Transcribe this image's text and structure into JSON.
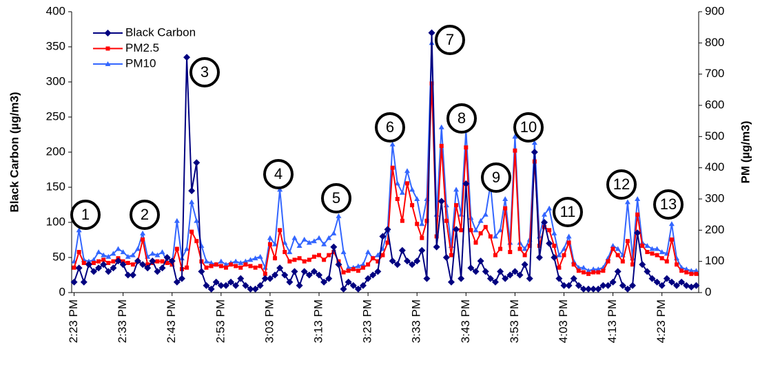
{
  "chart_data": {
    "type": "line",
    "categories": [
      "2:23 PM",
      null,
      null,
      null,
      null,
      null,
      null,
      null,
      null,
      null,
      "2:33 PM",
      null,
      null,
      null,
      null,
      null,
      null,
      null,
      null,
      null,
      "2:43 PM",
      null,
      null,
      null,
      null,
      null,
      null,
      null,
      null,
      null,
      "2:53 PM",
      null,
      null,
      null,
      null,
      null,
      null,
      null,
      null,
      null,
      "3:03 PM",
      null,
      null,
      null,
      null,
      null,
      null,
      null,
      null,
      null,
      "3:13 PM",
      null,
      null,
      null,
      null,
      null,
      null,
      null,
      null,
      null,
      "3:23 PM",
      null,
      null,
      null,
      null,
      null,
      null,
      null,
      null,
      null,
      "3:33 PM",
      null,
      null,
      null,
      null,
      null,
      null,
      null,
      null,
      null,
      "3:43 PM",
      null,
      null,
      null,
      null,
      null,
      null,
      null,
      null,
      null,
      "3:53 PM",
      null,
      null,
      null,
      null,
      null,
      null,
      null,
      null,
      null,
      "4:03 PM",
      null,
      null,
      null,
      null,
      null,
      null,
      null,
      null,
      null,
      "4:13 PM",
      null,
      null,
      null,
      null,
      null,
      null,
      null,
      null,
      null,
      "4:23 PM",
      null,
      null,
      null,
      null,
      null,
      null,
      null
    ],
    "series": [
      {
        "name": "Black Carbon",
        "color": "#000080",
        "marker": "diamond",
        "axis": "y",
        "values": [
          15,
          35,
          15,
          40,
          30,
          35,
          40,
          30,
          35,
          45,
          40,
          25,
          25,
          45,
          40,
          35,
          45,
          30,
          35,
          50,
          45,
          15,
          20,
          335,
          145,
          185,
          30,
          10,
          5,
          15,
          10,
          10,
          15,
          10,
          20,
          10,
          5,
          5,
          10,
          20,
          20,
          25,
          35,
          25,
          15,
          30,
          10,
          30,
          25,
          30,
          25,
          15,
          20,
          65,
          40,
          5,
          15,
          10,
          5,
          10,
          20,
          25,
          30,
          80,
          90,
          45,
          40,
          60,
          45,
          40,
          45,
          60,
          20,
          370,
          65,
          130,
          50,
          15,
          90,
          20,
          155,
          35,
          30,
          45,
          30,
          20,
          15,
          30,
          20,
          25,
          30,
          25,
          40,
          20,
          200,
          50,
          100,
          70,
          50,
          20,
          10,
          10,
          20,
          10,
          5,
          5,
          5,
          5,
          10,
          10,
          15,
          30,
          10,
          5,
          10,
          85,
          40,
          30,
          20,
          15,
          10,
          20,
          15,
          10,
          15,
          10,
          8,
          10
        ]
      },
      {
        "name": "PM2.5",
        "color": "#ff0000",
        "marker": "square",
        "axis": "y2",
        "values": [
          80,
          130,
          95,
          90,
          95,
          100,
          105,
          95,
          100,
          110,
          100,
          95,
          90,
          100,
          170,
          90,
          95,
          100,
          100,
          95,
          90,
          140,
          75,
          80,
          195,
          165,
          100,
          80,
          85,
          90,
          85,
          80,
          90,
          85,
          80,
          90,
          85,
          80,
          85,
          60,
          155,
          110,
          200,
          130,
          100,
          105,
          110,
          100,
          105,
          115,
          120,
          105,
          120,
          130,
          100,
          65,
          70,
          75,
          70,
          80,
          90,
          110,
          100,
          120,
          160,
          400,
          300,
          230,
          350,
          280,
          220,
          175,
          230,
          670,
          180,
          470,
          230,
          120,
          280,
          200,
          465,
          200,
          160,
          190,
          210,
          180,
          120,
          140,
          270,
          130,
          455,
          140,
          120,
          150,
          420,
          150,
          210,
          200,
          150,
          80,
          120,
          160,
          90,
          70,
          65,
          60,
          65,
          65,
          70,
          100,
          140,
          120,
          100,
          165,
          90,
          250,
          150,
          130,
          125,
          120,
          110,
          100,
          170,
          90,
          70,
          65,
          60,
          60
        ]
      },
      {
        "name": "PM10",
        "color": "#3366ff",
        "marker": "triangle",
        "axis": "y2",
        "values": [
          100,
          200,
          105,
          100,
          105,
          130,
          120,
          115,
          125,
          140,
          130,
          115,
          120,
          140,
          190,
          115,
          125,
          120,
          130,
          100,
          90,
          230,
          110,
          140,
          290,
          230,
          150,
          100,
          95,
          90,
          100,
          90,
          95,
          100,
          95,
          100,
          105,
          110,
          115,
          80,
          175,
          155,
          330,
          160,
          130,
          175,
          150,
          170,
          160,
          165,
          175,
          155,
          175,
          190,
          245,
          130,
          80,
          80,
          85,
          90,
          130,
          110,
          120,
          140,
          200,
          475,
          350,
          320,
          390,
          330,
          300,
          220,
          300,
          800,
          250,
          530,
          280,
          150,
          330,
          250,
          520,
          240,
          200,
          230,
          250,
          345,
          180,
          200,
          300,
          160,
          500,
          160,
          140,
          170,
          480,
          180,
          250,
          270,
          190,
          120,
          140,
          180,
          100,
          80,
          80,
          70,
          75,
          75,
          80,
          110,
          150,
          140,
          120,
          290,
          110,
          300,
          160,
          150,
          140,
          140,
          130,
          125,
          220,
          110,
          80,
          75,
          70,
          70
        ]
      }
    ],
    "y_label": "Black Carbon (µg/m3)",
    "y2_label": "PM (µg/m3)",
    "ylim": [
      0,
      400
    ],
    "yticks": [
      0,
      50,
      100,
      150,
      200,
      250,
      300,
      350,
      400
    ],
    "y2lim": [
      0,
      900
    ],
    "y2ticks": [
      0,
      100,
      200,
      300,
      400,
      500,
      600,
      700,
      800,
      900
    ],
    "legend": "upper left",
    "annotations": [
      "1",
      "2",
      "3",
      "4",
      "5",
      "6",
      "7",
      "8",
      "9",
      "10",
      "11",
      "12",
      "13"
    ]
  }
}
